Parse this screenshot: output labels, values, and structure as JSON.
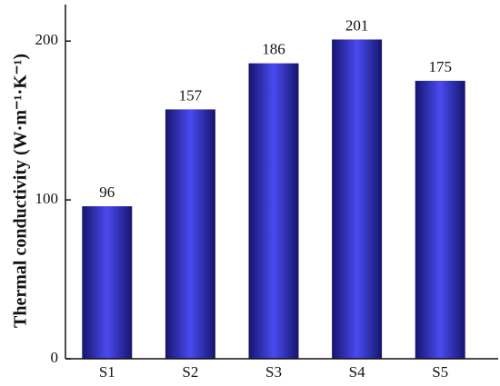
{
  "chart_data": {
    "type": "bar",
    "y_label": "Thermal conductivity (W·m⁻¹·K⁻¹)",
    "categories": [
      "S1",
      "S2",
      "S3",
      "S4",
      "S5"
    ],
    "values": [
      96,
      157,
      186,
      201,
      175
    ],
    "color": "#4a4af0",
    "ylim": [
      0,
      223
    ],
    "yticks": [
      0,
      100,
      200
    ]
  }
}
